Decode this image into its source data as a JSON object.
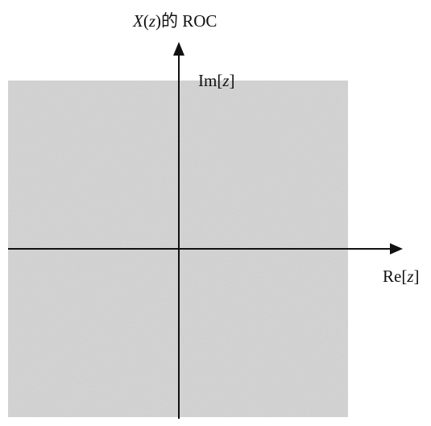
{
  "title": {
    "prefix": "X",
    "open": "(",
    "var": "z",
    "suffix": ")的 ROC"
  },
  "im_axis": {
    "prefix": "Im[",
    "var": "z",
    "suffix": "]"
  },
  "re_axis": {
    "prefix": "Re[",
    "var": "z",
    "suffix": "]"
  },
  "colors": {
    "roc_region": "#d4d4d4",
    "axis": "#111111",
    "background": "#ffffff"
  }
}
